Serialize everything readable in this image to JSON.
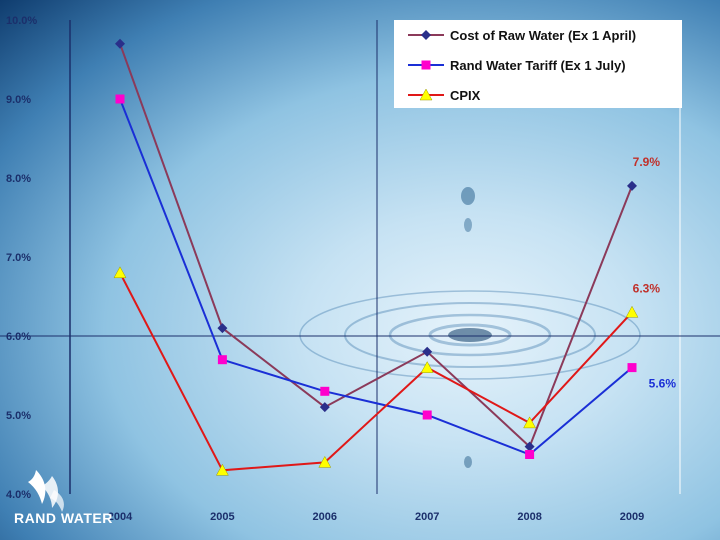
{
  "brand": {
    "logo_text": "RAND WATER"
  },
  "chart_data": {
    "type": "line",
    "title": "",
    "xlabel": "",
    "ylabel": "",
    "categories": [
      "2004",
      "2005",
      "2006",
      "2007",
      "2008",
      "2009"
    ],
    "y_ticks": [
      "10.0%",
      "9.0%",
      "8.0%",
      "7.0%",
      "6.0%",
      "5.0%",
      "4.0%"
    ],
    "ylim": [
      4.0,
      10.0
    ],
    "legend_position": "top-right",
    "grid": false,
    "series": [
      {
        "name": "Cost of Raw Water (Ex 1 April)",
        "color": "#2a2f8a",
        "line_color": "#8b3a5a",
        "marker": "diamond",
        "values": [
          9.7,
          6.1,
          5.1,
          5.8,
          4.6,
          7.9
        ]
      },
      {
        "name": "Rand Water Tariff (Ex 1 July)",
        "color": "#ff00cc",
        "line_color": "#1a2fd6",
        "marker": "square",
        "values": [
          9.0,
          5.7,
          5.3,
          5.0,
          4.5,
          5.6
        ]
      },
      {
        "name": "CPIX",
        "color": "#ffff00",
        "line_color": "#e01818",
        "marker": "triangle",
        "values": [
          6.8,
          4.3,
          4.4,
          5.6,
          4.9,
          6.3
        ]
      }
    ],
    "annotations": [
      {
        "text": "7.9%",
        "series": 0,
        "index": 5,
        "color": "#c0302a"
      },
      {
        "text": "6.3%",
        "series": 2,
        "index": 5,
        "color": "#c0302a"
      },
      {
        "text": "5.6%",
        "series": 1,
        "index": 5,
        "color": "#1a2fd6"
      }
    ]
  }
}
